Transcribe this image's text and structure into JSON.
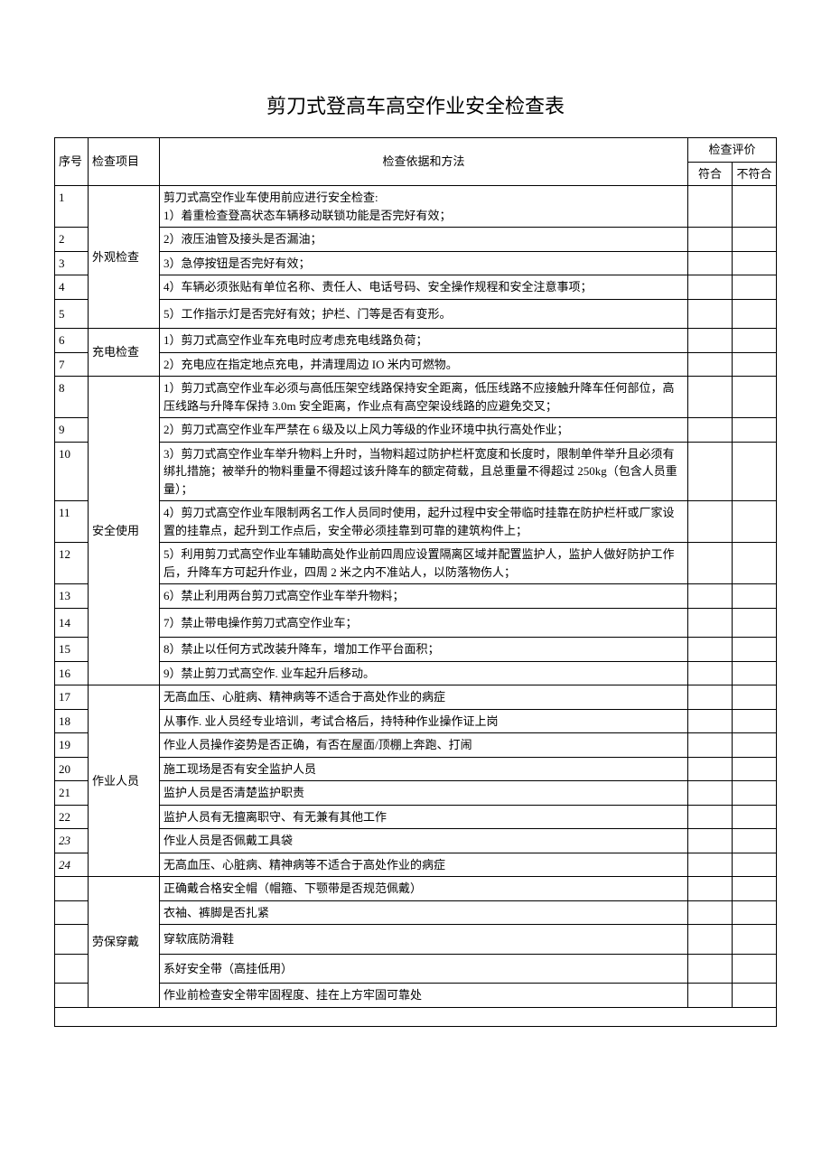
{
  "title": "剪刀式登高车高空作业安全检查表",
  "headers": {
    "seq": "序号",
    "category": "检查项目",
    "method": "检查依据和方法",
    "evaluation": "检查评价",
    "pass": "符合",
    "fail": "不符合"
  },
  "sections": [
    {
      "category": "外观检查",
      "rows": [
        {
          "seq": "1",
          "text": "剪刀式高空作业车使用前应进行安全检查:\n1）着重检查登高状态车辆移动联锁功能是否完好有效；"
        },
        {
          "seq": "2",
          "text": "2）液压油管及接头是否漏油；"
        },
        {
          "seq": "3",
          "text": "3）急停按钮是否完好有效；"
        },
        {
          "seq": "4",
          "text": "4）车辆必须张贴有单位名称、责任人、电话号码、安全操作规程和安全注意事项；"
        },
        {
          "seq": "5",
          "text": "5）工作指示灯是否完好有效；护栏、门等是否有变形。",
          "tall": true
        }
      ]
    },
    {
      "category": "充电检查",
      "rows": [
        {
          "seq": "6",
          "text": "1）剪刀式高空作业车充电时应考虑充电线路负荷；"
        },
        {
          "seq": "7",
          "text": "2）充电应在指定地点充电，并清理周边 IO 米内可燃物。"
        }
      ]
    },
    {
      "category": "安全使用",
      "rows": [
        {
          "seq": "8",
          "text": "1）剪刀式高空作业车必须与高低压架空线路保持安全距离，低压线路不应接触升降车任何部位，高压线路与升降车保持 3.0m 安全距离，作业点有高空架设线路的应避免交叉；"
        },
        {
          "seq": "9",
          "text": "2）剪刀式高空作业车严禁在 6 级及以上风力等级的作业环境中执行高处作业；"
        },
        {
          "seq": "10",
          "text": "3）剪刀式高空作业车举升物料上升时，当物料超过防护栏杆宽度和长度时，限制单件举升且必须有绑扎措施；被举升的物料重量不得超过该升降车的额定荷载，且总重量不得超过 250kg（包含人员重量）；"
        },
        {
          "seq": "11",
          "text": "4）剪刀式高空作业车限制两名工作人员同时使用，起升过程中安全带临时挂靠在防护栏杆或厂家设置的挂靠点，起升到工作点后，安全带必须挂靠到可靠的建筑构件上；"
        },
        {
          "seq": "12",
          "text": "5）利用剪刀式高空作业车辅助高处作业前四周应设置隔离区域并配置监护人，监护人做好防护工作后，升降车方可起升作业，四周 2 米之内不准站人，以防落物伤人；"
        },
        {
          "seq": "13",
          "text": "6）禁止利用两台剪刀式高空作业车举升物料；"
        },
        {
          "seq": "14",
          "text": "7）禁止带电操作剪刀式高空作业车；",
          "tall": true
        },
        {
          "seq": "15",
          "text": "8）禁止以任何方式改装升降车，增加工作平台面积；"
        },
        {
          "seq": "16",
          "text": "9）禁止剪刀式高空作. 业车起升后移动。"
        }
      ]
    },
    {
      "category": "作业人员",
      "rows": [
        {
          "seq": "17",
          "text": "无高血压、心脏病、精神病等不适合于高处作业的病症"
        },
        {
          "seq": "18",
          "text": "从事作. 业人员经专业培训，考试合格后，持特种作业操作证上岗"
        },
        {
          "seq": "19",
          "text": "作业人员操作姿势是否正确，有否在屋面/顶棚上奔跑、打闹"
        },
        {
          "seq": "20",
          "text": "施工现场是否有安全监护人员"
        },
        {
          "seq": "21",
          "text": "监护人员是否清楚监护职责"
        },
        {
          "seq": "22",
          "text": "监护人员有无擅离职守、有无兼有其他工作"
        },
        {
          "seq": "23",
          "text": "作业人员是否佩戴工具袋",
          "italic": true
        },
        {
          "seq": "24",
          "text": "无高血压、心脏病、精神病等不适合于高处作业的病症",
          "italic": true
        }
      ]
    },
    {
      "category": "劳保穿戴",
      "rows": [
        {
          "seq": "",
          "text": "正确戴合格安全帽（帽箍、下颚带是否规范佩戴）"
        },
        {
          "seq": "",
          "text": "衣袖、裤脚是否扎紧"
        },
        {
          "seq": "",
          "text": "穿软底防滑鞋",
          "tall": true
        },
        {
          "seq": "",
          "text": "系好安全带（高挂低用）",
          "tall": true
        },
        {
          "seq": "",
          "text": "作业前检查安全带牢固程度、挂在上方牢固可靠处"
        }
      ]
    }
  ]
}
